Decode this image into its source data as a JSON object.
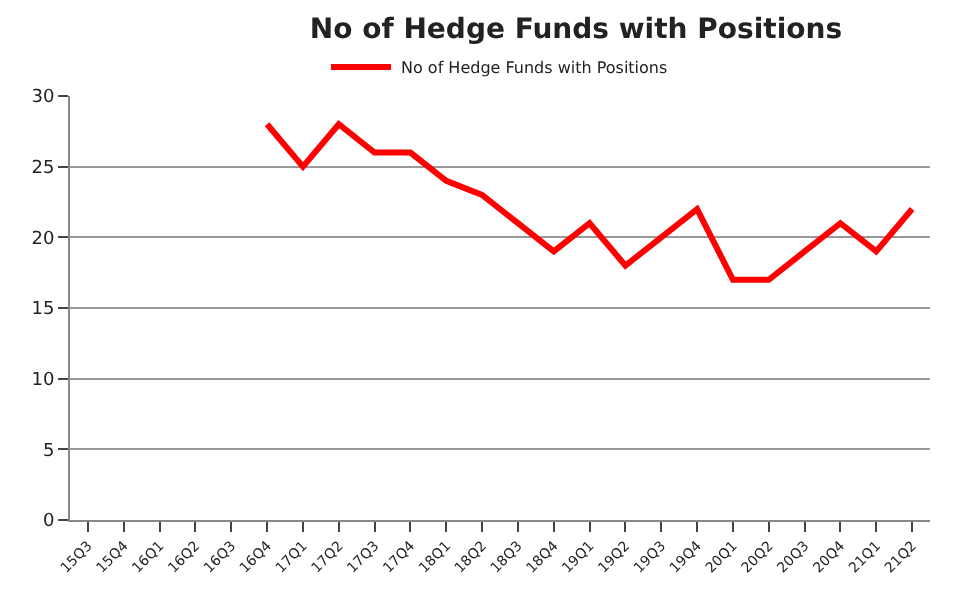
{
  "chart_data": {
    "type": "line",
    "title": "No of Hedge Funds with Positions",
    "categories": [
      "15Q3",
      "15Q4",
      "16Q1",
      "16Q2",
      "16Q3",
      "16Q4",
      "17Q1",
      "17Q2",
      "17Q3",
      "17Q4",
      "18Q1",
      "18Q2",
      "18Q3",
      "18Q4",
      "19Q1",
      "19Q2",
      "19Q3",
      "19Q4",
      "20Q1",
      "20Q2",
      "20Q3",
      "20Q4",
      "21Q1",
      "21Q2"
    ],
    "series": [
      {
        "name": "No of Hedge Funds with Positions",
        "color": "#ff0000",
        "values": [
          null,
          null,
          null,
          null,
          null,
          28,
          25,
          28,
          26,
          26,
          24,
          23,
          21,
          19,
          21,
          18,
          20,
          22,
          17,
          17,
          19,
          21,
          19,
          22
        ]
      }
    ],
    "ylim": [
      0,
      30
    ],
    "yticks": [
      0,
      5,
      10,
      15,
      20,
      25,
      30
    ],
    "grid": "y",
    "legend": "top",
    "marker": "none",
    "line_style": "solid"
  }
}
